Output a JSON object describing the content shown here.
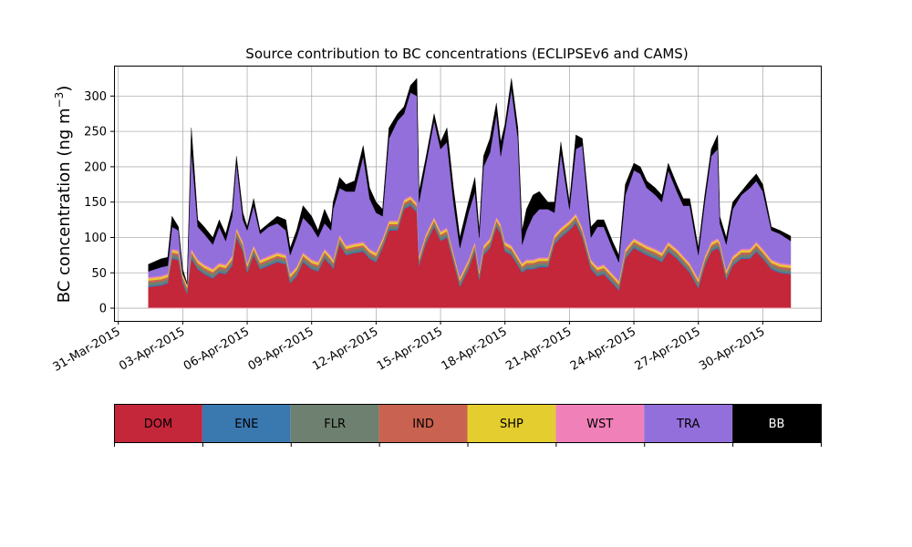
{
  "chart_data": {
    "type": "area",
    "title": "Source contribution to BC concentrations (ECLIPSEv6 and CAMS)",
    "ylabel": "BC concentration (ng m",
    "ylabel_sup": "−3",
    "ylabel_close": ")",
    "xlabel": "",
    "ylim": [
      -18,
      343
    ],
    "xlim": [
      -0.2,
      32.7
    ],
    "grid": true,
    "x_start": 1.4,
    "x_end": 31.3,
    "x_ticks": [
      {
        "x": 0,
        "label": "31-Mar-2015"
      },
      {
        "x": 3,
        "label": "03-Apr-2015"
      },
      {
        "x": 6,
        "label": "06-Apr-2015"
      },
      {
        "x": 9,
        "label": "09-Apr-2015"
      },
      {
        "x": 12,
        "label": "12-Apr-2015"
      },
      {
        "x": 15,
        "label": "15-Apr-2015"
      },
      {
        "x": 18,
        "label": "18-Apr-2015"
      },
      {
        "x": 21,
        "label": "21-Apr-2015"
      },
      {
        "x": 24,
        "label": "24-Apr-2015"
      },
      {
        "x": 27,
        "label": "27-Apr-2015"
      },
      {
        "x": 30,
        "label": "30-Apr-2015"
      }
    ],
    "y_ticks": [
      0,
      50,
      100,
      150,
      200,
      250,
      300
    ],
    "dom_points": [
      [
        1.4,
        30
      ],
      [
        2.0,
        32
      ],
      [
        2.3,
        35
      ],
      [
        2.5,
        70
      ],
      [
        2.8,
        68
      ],
      [
        3.0,
        35
      ],
      [
        3.2,
        20
      ],
      [
        3.4,
        70
      ],
      [
        3.7,
        55
      ],
      [
        4.0,
        48
      ],
      [
        4.4,
        42
      ],
      [
        4.7,
        50
      ],
      [
        5.0,
        48
      ],
      [
        5.3,
        60
      ],
      [
        5.5,
        100
      ],
      [
        5.8,
        80
      ],
      [
        6.0,
        50
      ],
      [
        6.3,
        75
      ],
      [
        6.6,
        55
      ],
      [
        7.0,
        60
      ],
      [
        7.4,
        65
      ],
      [
        7.8,
        62
      ],
      [
        8.0,
        35
      ],
      [
        8.3,
        45
      ],
      [
        8.6,
        65
      ],
      [
        9.0,
        55
      ],
      [
        9.3,
        52
      ],
      [
        9.6,
        70
      ],
      [
        9.9,
        60
      ],
      [
        10.0,
        55
      ],
      [
        10.3,
        90
      ],
      [
        10.6,
        75
      ],
      [
        11.0,
        78
      ],
      [
        11.4,
        80
      ],
      [
        11.7,
        70
      ],
      [
        12.0,
        65
      ],
      [
        12.3,
        85
      ],
      [
        12.6,
        110
      ],
      [
        13.0,
        110
      ],
      [
        13.3,
        140
      ],
      [
        13.6,
        145
      ],
      [
        13.9,
        135
      ],
      [
        14.0,
        60
      ],
      [
        14.3,
        90
      ],
      [
        14.7,
        115
      ],
      [
        15.0,
        95
      ],
      [
        15.3,
        100
      ],
      [
        15.6,
        65
      ],
      [
        15.9,
        30
      ],
      [
        16.3,
        55
      ],
      [
        16.6,
        80
      ],
      [
        16.8,
        40
      ],
      [
        17.0,
        75
      ],
      [
        17.3,
        85
      ],
      [
        17.6,
        115
      ],
      [
        17.8,
        105
      ],
      [
        18.0,
        80
      ],
      [
        18.3,
        75
      ],
      [
        18.6,
        60
      ],
      [
        18.8,
        50
      ],
      [
        19.0,
        55
      ],
      [
        19.3,
        55
      ],
      [
        19.6,
        58
      ],
      [
        20.0,
        58
      ],
      [
        20.3,
        90
      ],
      [
        20.6,
        100
      ],
      [
        21.0,
        110
      ],
      [
        21.3,
        120
      ],
      [
        21.6,
        100
      ],
      [
        22.0,
        55
      ],
      [
        22.3,
        45
      ],
      [
        22.6,
        48
      ],
      [
        23.0,
        35
      ],
      [
        23.3,
        25
      ],
      [
        23.6,
        70
      ],
      [
        24.0,
        85
      ],
      [
        24.3,
        80
      ],
      [
        24.6,
        75
      ],
      [
        25.0,
        70
      ],
      [
        25.3,
        65
      ],
      [
        25.6,
        80
      ],
      [
        26.0,
        70
      ],
      [
        26.3,
        60
      ],
      [
        26.6,
        50
      ],
      [
        27.0,
        28
      ],
      [
        27.3,
        60
      ],
      [
        27.6,
        80
      ],
      [
        27.9,
        85
      ],
      [
        28.0,
        80
      ],
      [
        28.3,
        40
      ],
      [
        28.6,
        60
      ],
      [
        29.0,
        70
      ],
      [
        29.4,
        70
      ],
      [
        29.7,
        80
      ],
      [
        30.0,
        70
      ],
      [
        30.4,
        55
      ],
      [
        30.8,
        50
      ],
      [
        31.3,
        48
      ]
    ],
    "tra_points": [
      [
        1.4,
        52
      ],
      [
        2.0,
        58
      ],
      [
        2.3,
        60
      ],
      [
        2.5,
        115
      ],
      [
        2.8,
        110
      ],
      [
        3.0,
        45
      ],
      [
        3.2,
        30
      ],
      [
        3.4,
        225
      ],
      [
        3.7,
        115
      ],
      [
        4.0,
        105
      ],
      [
        4.4,
        90
      ],
      [
        4.7,
        115
      ],
      [
        5.0,
        95
      ],
      [
        5.3,
        130
      ],
      [
        5.5,
        205
      ],
      [
        5.8,
        125
      ],
      [
        6.0,
        110
      ],
      [
        6.3,
        145
      ],
      [
        6.6,
        105
      ],
      [
        7.0,
        115
      ],
      [
        7.4,
        120
      ],
      [
        7.8,
        110
      ],
      [
        8.0,
        75
      ],
      [
        8.3,
        100
      ],
      [
        8.6,
        128
      ],
      [
        9.0,
        115
      ],
      [
        9.3,
        100
      ],
      [
        9.6,
        120
      ],
      [
        9.9,
        110
      ],
      [
        10.0,
        140
      ],
      [
        10.3,
        170
      ],
      [
        10.6,
        165
      ],
      [
        11.0,
        165
      ],
      [
        11.4,
        215
      ],
      [
        11.7,
        155
      ],
      [
        12.0,
        135
      ],
      [
        12.3,
        130
      ],
      [
        12.6,
        240
      ],
      [
        13.0,
        265
      ],
      [
        13.3,
        275
      ],
      [
        13.6,
        305
      ],
      [
        13.9,
        300
      ],
      [
        14.0,
        150
      ],
      [
        14.3,
        200
      ],
      [
        14.7,
        265
      ],
      [
        15.0,
        225
      ],
      [
        15.3,
        235
      ],
      [
        15.6,
        150
      ],
      [
        15.9,
        85
      ],
      [
        16.3,
        135
      ],
      [
        16.6,
        165
      ],
      [
        16.8,
        100
      ],
      [
        17.0,
        200
      ],
      [
        17.3,
        220
      ],
      [
        17.6,
        275
      ],
      [
        17.8,
        215
      ],
      [
        18.0,
        250
      ],
      [
        18.3,
        310
      ],
      [
        18.6,
        240
      ],
      [
        18.8,
        90
      ],
      [
        19.0,
        110
      ],
      [
        19.3,
        130
      ],
      [
        19.6,
        140
      ],
      [
        20.0,
        140
      ],
      [
        20.3,
        135
      ],
      [
        20.6,
        220
      ],
      [
        21.0,
        140
      ],
      [
        21.3,
        225
      ],
      [
        21.6,
        230
      ],
      [
        22.0,
        100
      ],
      [
        22.3,
        115
      ],
      [
        22.6,
        115
      ],
      [
        23.0,
        85
      ],
      [
        23.3,
        65
      ],
      [
        23.6,
        160
      ],
      [
        24.0,
        195
      ],
      [
        24.3,
        190
      ],
      [
        24.6,
        170
      ],
      [
        25.0,
        160
      ],
      [
        25.3,
        150
      ],
      [
        25.6,
        195
      ],
      [
        26.0,
        165
      ],
      [
        26.3,
        145
      ],
      [
        26.6,
        145
      ],
      [
        27.0,
        75
      ],
      [
        27.3,
        150
      ],
      [
        27.6,
        215
      ],
      [
        27.9,
        225
      ],
      [
        28.0,
        120
      ],
      [
        28.3,
        90
      ],
      [
        28.6,
        140
      ],
      [
        29.0,
        160
      ],
      [
        29.4,
        170
      ],
      [
        29.7,
        180
      ],
      [
        30.0,
        165
      ],
      [
        30.4,
        110
      ],
      [
        30.8,
        105
      ],
      [
        31.3,
        95
      ]
    ],
    "bb_points": [
      [
        1.4,
        62
      ],
      [
        2.0,
        70
      ],
      [
        2.3,
        72
      ],
      [
        2.5,
        130
      ],
      [
        2.8,
        115
      ],
      [
        3.0,
        55
      ],
      [
        3.2,
        35
      ],
      [
        3.4,
        255
      ],
      [
        3.7,
        125
      ],
      [
        4.0,
        115
      ],
      [
        4.4,
        100
      ],
      [
        4.7,
        125
      ],
      [
        5.0,
        105
      ],
      [
        5.3,
        140
      ],
      [
        5.5,
        215
      ],
      [
        5.8,
        135
      ],
      [
        6.0,
        115
      ],
      [
        6.3,
        155
      ],
      [
        6.6,
        110
      ],
      [
        7.0,
        120
      ],
      [
        7.4,
        130
      ],
      [
        7.8,
        125
      ],
      [
        8.0,
        85
      ],
      [
        8.3,
        110
      ],
      [
        8.6,
        145
      ],
      [
        9.0,
        130
      ],
      [
        9.3,
        110
      ],
      [
        9.6,
        140
      ],
      [
        9.9,
        120
      ],
      [
        10.0,
        150
      ],
      [
        10.3,
        185
      ],
      [
        10.6,
        175
      ],
      [
        11.0,
        180
      ],
      [
        11.4,
        230
      ],
      [
        11.7,
        170
      ],
      [
        12.0,
        150
      ],
      [
        12.3,
        140
      ],
      [
        12.6,
        255
      ],
      [
        13.0,
        275
      ],
      [
        13.3,
        285
      ],
      [
        13.6,
        315
      ],
      [
        13.9,
        325
      ],
      [
        14.0,
        165
      ],
      [
        14.3,
        210
      ],
      [
        14.7,
        275
      ],
      [
        15.0,
        235
      ],
      [
        15.3,
        255
      ],
      [
        15.6,
        170
      ],
      [
        15.9,
        100
      ],
      [
        16.3,
        150
      ],
      [
        16.6,
        185
      ],
      [
        16.8,
        110
      ],
      [
        17.0,
        215
      ],
      [
        17.3,
        240
      ],
      [
        17.6,
        290
      ],
      [
        17.8,
        235
      ],
      [
        18.0,
        260
      ],
      [
        18.3,
        325
      ],
      [
        18.6,
        255
      ],
      [
        18.8,
        110
      ],
      [
        19.0,
        140
      ],
      [
        19.3,
        160
      ],
      [
        19.6,
        165
      ],
      [
        20.0,
        150
      ],
      [
        20.3,
        150
      ],
      [
        20.6,
        235
      ],
      [
        21.0,
        150
      ],
      [
        21.3,
        245
      ],
      [
        21.6,
        240
      ],
      [
        22.0,
        115
      ],
      [
        22.3,
        125
      ],
      [
        22.6,
        125
      ],
      [
        23.0,
        95
      ],
      [
        23.3,
        75
      ],
      [
        23.6,
        175
      ],
      [
        24.0,
        205
      ],
      [
        24.3,
        200
      ],
      [
        24.6,
        180
      ],
      [
        25.0,
        170
      ],
      [
        25.3,
        160
      ],
      [
        25.6,
        205
      ],
      [
        26.0,
        175
      ],
      [
        26.3,
        155
      ],
      [
        26.6,
        155
      ],
      [
        27.0,
        85
      ],
      [
        27.3,
        160
      ],
      [
        27.6,
        225
      ],
      [
        27.9,
        245
      ],
      [
        28.0,
        130
      ],
      [
        28.3,
        100
      ],
      [
        28.6,
        150
      ],
      [
        29.0,
        165
      ],
      [
        29.4,
        180
      ],
      [
        29.7,
        190
      ],
      [
        30.0,
        175
      ],
      [
        30.4,
        115
      ],
      [
        30.8,
        110
      ],
      [
        31.3,
        102
      ]
    ],
    "mid_layers": [
      {
        "name": "ENE",
        "offset": 2
      },
      {
        "name": "FLR",
        "offset": 4
      },
      {
        "name": "IND",
        "offset": 3
      },
      {
        "name": "SHP",
        "offset": 3
      },
      {
        "name": "WST",
        "offset": 2
      }
    ],
    "legend": [
      {
        "label": "DOM",
        "color": "#c4263a",
        "text_color": "#000000"
      },
      {
        "label": "ENE",
        "color": "#3a78b0",
        "text_color": "#000000"
      },
      {
        "label": "FLR",
        "color": "#6e806f",
        "text_color": "#000000"
      },
      {
        "label": "IND",
        "color": "#c96250",
        "text_color": "#000000"
      },
      {
        "label": "SHP",
        "color": "#e4cd2e",
        "text_color": "#000000"
      },
      {
        "label": "WST",
        "color": "#ef80b8",
        "text_color": "#000000"
      },
      {
        "label": "TRA",
        "color": "#936fdb",
        "text_color": "#000000"
      },
      {
        "label": "BB",
        "color": "#000000",
        "text_color": "#ffffff"
      }
    ]
  }
}
